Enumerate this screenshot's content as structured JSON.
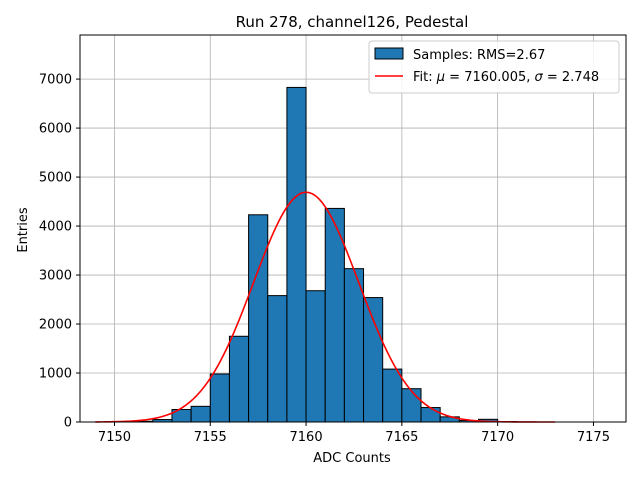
{
  "chart_data": {
    "type": "bar",
    "title": "Run 278, channel126, Pedestal",
    "xlabel": "ADC Counts",
    "ylabel": "Entries",
    "xlim": [
      7148.2,
      7176.7
    ],
    "ylim": [
      0,
      7900
    ],
    "xticks": [
      7150,
      7155,
      7160,
      7165,
      7170,
      7175
    ],
    "yticks": [
      0,
      1000,
      2000,
      3000,
      4000,
      5000,
      6000,
      7000
    ],
    "grid": true,
    "legend_position": "top-right",
    "bar_color": "#1f77b4",
    "bar_edge_color": "#000000",
    "fit_color": "#ff0000",
    "bins": [
      {
        "x0": 7151,
        "x1": 7152,
        "value": 15
      },
      {
        "x0": 7152,
        "x1": 7153,
        "value": 50
      },
      {
        "x0": 7153,
        "x1": 7154,
        "value": 255
      },
      {
        "x0": 7154,
        "x1": 7155,
        "value": 320
      },
      {
        "x0": 7155,
        "x1": 7156,
        "value": 980
      },
      {
        "x0": 7156,
        "x1": 7157,
        "value": 1750
      },
      {
        "x0": 7157,
        "x1": 7158,
        "value": 4230
      },
      {
        "x0": 7158,
        "x1": 7159,
        "value": 2580
      },
      {
        "x0": 7159,
        "x1": 7160,
        "value": 6830
      },
      {
        "x0": 7160,
        "x1": 7161,
        "value": 2680
      },
      {
        "x0": 7161,
        "x1": 7162,
        "value": 4360
      },
      {
        "x0": 7162,
        "x1": 7163,
        "value": 3130
      },
      {
        "x0": 7163,
        "x1": 7164,
        "value": 2540
      },
      {
        "x0": 7164,
        "x1": 7165,
        "value": 1080
      },
      {
        "x0": 7165,
        "x1": 7166,
        "value": 680
      },
      {
        "x0": 7166,
        "x1": 7167,
        "value": 295
      },
      {
        "x0": 7167,
        "x1": 7168,
        "value": 105
      },
      {
        "x0": 7168,
        "x1": 7169,
        "value": 30
      },
      {
        "x0": 7169,
        "x1": 7170,
        "value": 55
      },
      {
        "x0": 7170,
        "x1": 7171,
        "value": 10
      }
    ],
    "fit": {
      "mu": 7160.005,
      "sigma": 2.748,
      "amplitude": 4690,
      "x_range": [
        7149,
        7173
      ]
    },
    "legend": [
      {
        "kind": "bar",
        "label": "Samples: RMS=2.67"
      },
      {
        "kind": "line",
        "label_prefix": "Fit: ",
        "mu_symbol": "μ",
        "mu_text": " = 7160.005, ",
        "sigma_symbol": "σ",
        "sigma_text": " = 2.748"
      }
    ]
  }
}
